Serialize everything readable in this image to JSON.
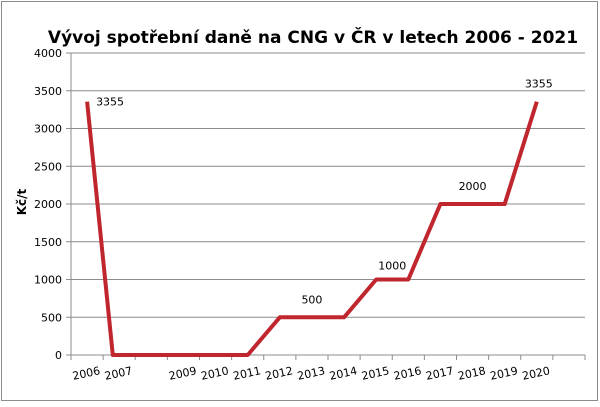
{
  "chart_data": {
    "type": "line",
    "title": "Vývoj spotřební daně na CNG v ČR v letech 2006 - 2021",
    "xlabel": "",
    "ylabel": "Kč/t",
    "ylim": [
      0,
      4000
    ],
    "yticks": [
      0,
      500,
      1000,
      1500,
      2000,
      2500,
      3000,
      3500,
      4000
    ],
    "grid": true,
    "legend": "none",
    "x_tick_labels": [
      "2006",
      "2007",
      "2009",
      "2010",
      "2011",
      "2012",
      "2013",
      "2014",
      "2015",
      "2016",
      "2017",
      "2018",
      "2019",
      "2020"
    ],
    "line_color": "#c0262d",
    "series": [
      {
        "points": [
          {
            "x": 2006.5,
            "y": 3355
          },
          {
            "x": 2007.3,
            "y": 0
          },
          {
            "x": 2011.5,
            "y": 0
          },
          {
            "x": 2012.5,
            "y": 500
          },
          {
            "x": 2014.5,
            "y": 500
          },
          {
            "x": 2015.5,
            "y": 1000
          },
          {
            "x": 2016.5,
            "y": 1000
          },
          {
            "x": 2017.5,
            "y": 2000
          },
          {
            "x": 2019.5,
            "y": 2000
          },
          {
            "x": 2020.5,
            "y": 3355
          }
        ]
      }
    ],
    "data_labels": [
      {
        "text": "3355",
        "x": 2006.5,
        "y": 3355
      },
      {
        "text": "500",
        "x": 2013.5,
        "y": 500
      },
      {
        "text": "1000",
        "x": 2016.0,
        "y": 1000
      },
      {
        "text": "2000",
        "x": 2018.5,
        "y": 2000
      },
      {
        "text": "3355",
        "x": 2020.5,
        "y": 3355
      }
    ]
  }
}
